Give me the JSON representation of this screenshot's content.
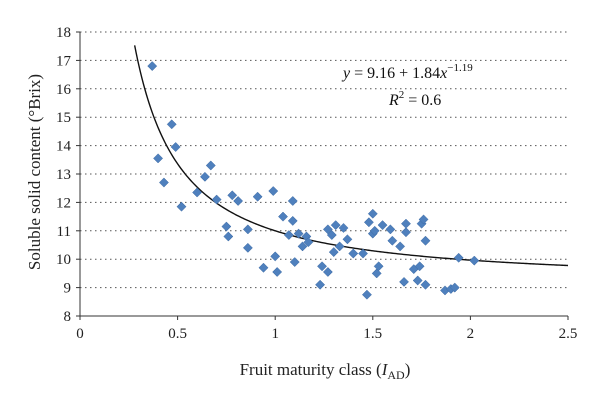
{
  "chart_data": {
    "type": "scatter",
    "title": "",
    "xlabel_prefix": "Fruit maturity class (",
    "xlabel_symbol": "I",
    "xlabel_subscript": "AD",
    "xlabel_suffix": ")",
    "ylabel": "Soluble solid content (°Brix)",
    "xlim": [
      0,
      2.5
    ],
    "ylim": [
      8,
      18
    ],
    "xticks": [
      0,
      0.5,
      1,
      1.5,
      2,
      2.5
    ],
    "xtick_labels": [
      "0",
      "0.5",
      "1",
      "1.5",
      "2",
      "2.5"
    ],
    "yticks": [
      8,
      9,
      10,
      11,
      12,
      13,
      14,
      15,
      16,
      17,
      18
    ],
    "ytick_labels": [
      "8",
      "9",
      "10",
      "11",
      "12",
      "13",
      "14",
      "15",
      "16",
      "17",
      "18"
    ],
    "grid": "horizontal-dotted",
    "series": [
      {
        "name": "observations",
        "marker": "diamond",
        "color": "#4f80bd",
        "points": [
          [
            0.37,
            16.8
          ],
          [
            0.4,
            13.55
          ],
          [
            0.43,
            12.7
          ],
          [
            0.47,
            14.75
          ],
          [
            0.49,
            13.95
          ],
          [
            0.52,
            11.85
          ],
          [
            0.6,
            12.35
          ],
          [
            0.64,
            12.9
          ],
          [
            0.67,
            13.3
          ],
          [
            0.7,
            12.1
          ],
          [
            0.75,
            11.15
          ],
          [
            0.76,
            10.8
          ],
          [
            0.78,
            12.25
          ],
          [
            0.81,
            12.05
          ],
          [
            0.86,
            11.05
          ],
          [
            0.86,
            10.4
          ],
          [
            0.91,
            12.2
          ],
          [
            0.94,
            9.7
          ],
          [
            0.99,
            12.4
          ],
          [
            1.0,
            10.1
          ],
          [
            1.01,
            9.55
          ],
          [
            1.04,
            11.5
          ],
          [
            1.07,
            10.85
          ],
          [
            1.09,
            11.35
          ],
          [
            1.09,
            12.05
          ],
          [
            1.1,
            9.9
          ],
          [
            1.12,
            10.9
          ],
          [
            1.14,
            10.45
          ],
          [
            1.16,
            10.8
          ],
          [
            1.17,
            10.6
          ],
          [
            1.23,
            9.1
          ],
          [
            1.24,
            9.75
          ],
          [
            1.27,
            11.05
          ],
          [
            1.27,
            9.55
          ],
          [
            1.29,
            10.85
          ],
          [
            1.3,
            10.25
          ],
          [
            1.31,
            11.2
          ],
          [
            1.33,
            10.45
          ],
          [
            1.35,
            11.1
          ],
          [
            1.37,
            10.7
          ],
          [
            1.4,
            10.2
          ],
          [
            1.45,
            10.2
          ],
          [
            1.47,
            8.75
          ],
          [
            1.48,
            11.3
          ],
          [
            1.5,
            11.6
          ],
          [
            1.5,
            10.9
          ],
          [
            1.51,
            11.0
          ],
          [
            1.52,
            9.5
          ],
          [
            1.53,
            9.75
          ],
          [
            1.55,
            11.2
          ],
          [
            1.59,
            11.05
          ],
          [
            1.6,
            10.65
          ],
          [
            1.64,
            10.45
          ],
          [
            1.66,
            9.2
          ],
          [
            1.67,
            10.95
          ],
          [
            1.67,
            11.25
          ],
          [
            1.71,
            9.65
          ],
          [
            1.73,
            9.25
          ],
          [
            1.74,
            9.75
          ],
          [
            1.75,
            11.25
          ],
          [
            1.76,
            11.4
          ],
          [
            1.77,
            10.65
          ],
          [
            1.77,
            9.1
          ],
          [
            1.87,
            8.9
          ],
          [
            1.9,
            8.95
          ],
          [
            1.92,
            9.0
          ],
          [
            1.94,
            10.05
          ],
          [
            2.02,
            9.95
          ]
        ]
      }
    ],
    "fit": {
      "a": 9.16,
      "b": 1.84,
      "c": -1.19,
      "x_start": 0.28,
      "x_end": 2.5
    },
    "annotations": {
      "equation_lhs": "y",
      "equation_rhs": " = 9.16 + 1.84",
      "equation_var": "x",
      "equation_exp": "−1.19",
      "r2_symbol": "R",
      "r2_power": "2",
      "r2_rhs": " = 0.6"
    }
  }
}
